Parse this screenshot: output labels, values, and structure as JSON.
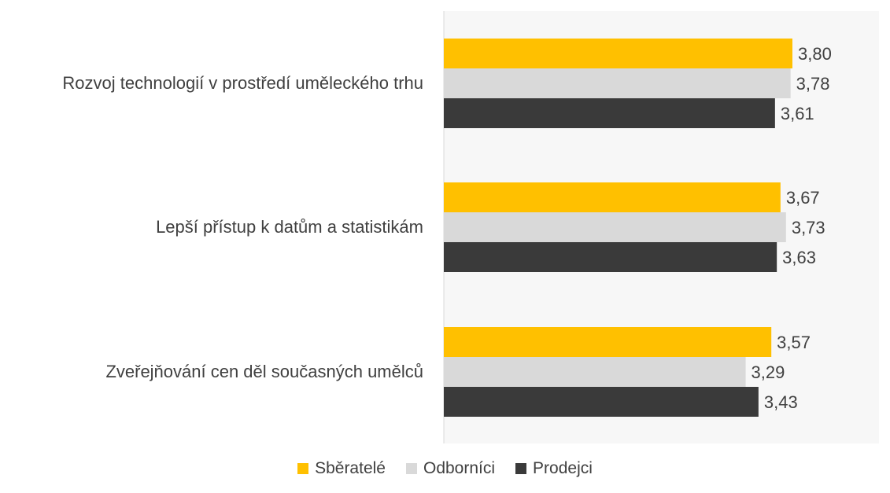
{
  "chart_data": {
    "type": "bar",
    "orientation": "horizontal",
    "categories": [
      "Rozvoj technologií v prostředí uměleckého trhu",
      "Lepší přístup k datům a statistikám",
      "Zveřejňování cen děl současných umělců"
    ],
    "series": [
      {
        "name": "Sběratelé",
        "color": "#FFC000",
        "values": [
          3.8,
          3.67,
          3.57
        ],
        "labels": [
          "3,80",
          "3,67",
          "3,57"
        ]
      },
      {
        "name": "Odborníci",
        "color": "#D9D9D9",
        "values": [
          3.78,
          3.73,
          3.29
        ],
        "labels": [
          "3,78",
          "3,73",
          "3,29"
        ]
      },
      {
        "name": "Prodejci",
        "color": "#3A3A3A",
        "values": [
          3.61,
          3.63,
          3.43
        ],
        "labels": [
          "3,61",
          "3,63",
          "3,43"
        ]
      }
    ],
    "xlim": [
      0,
      4.5
    ],
    "axis_visible": false,
    "grid": false,
    "legend_position": "bottom"
  }
}
